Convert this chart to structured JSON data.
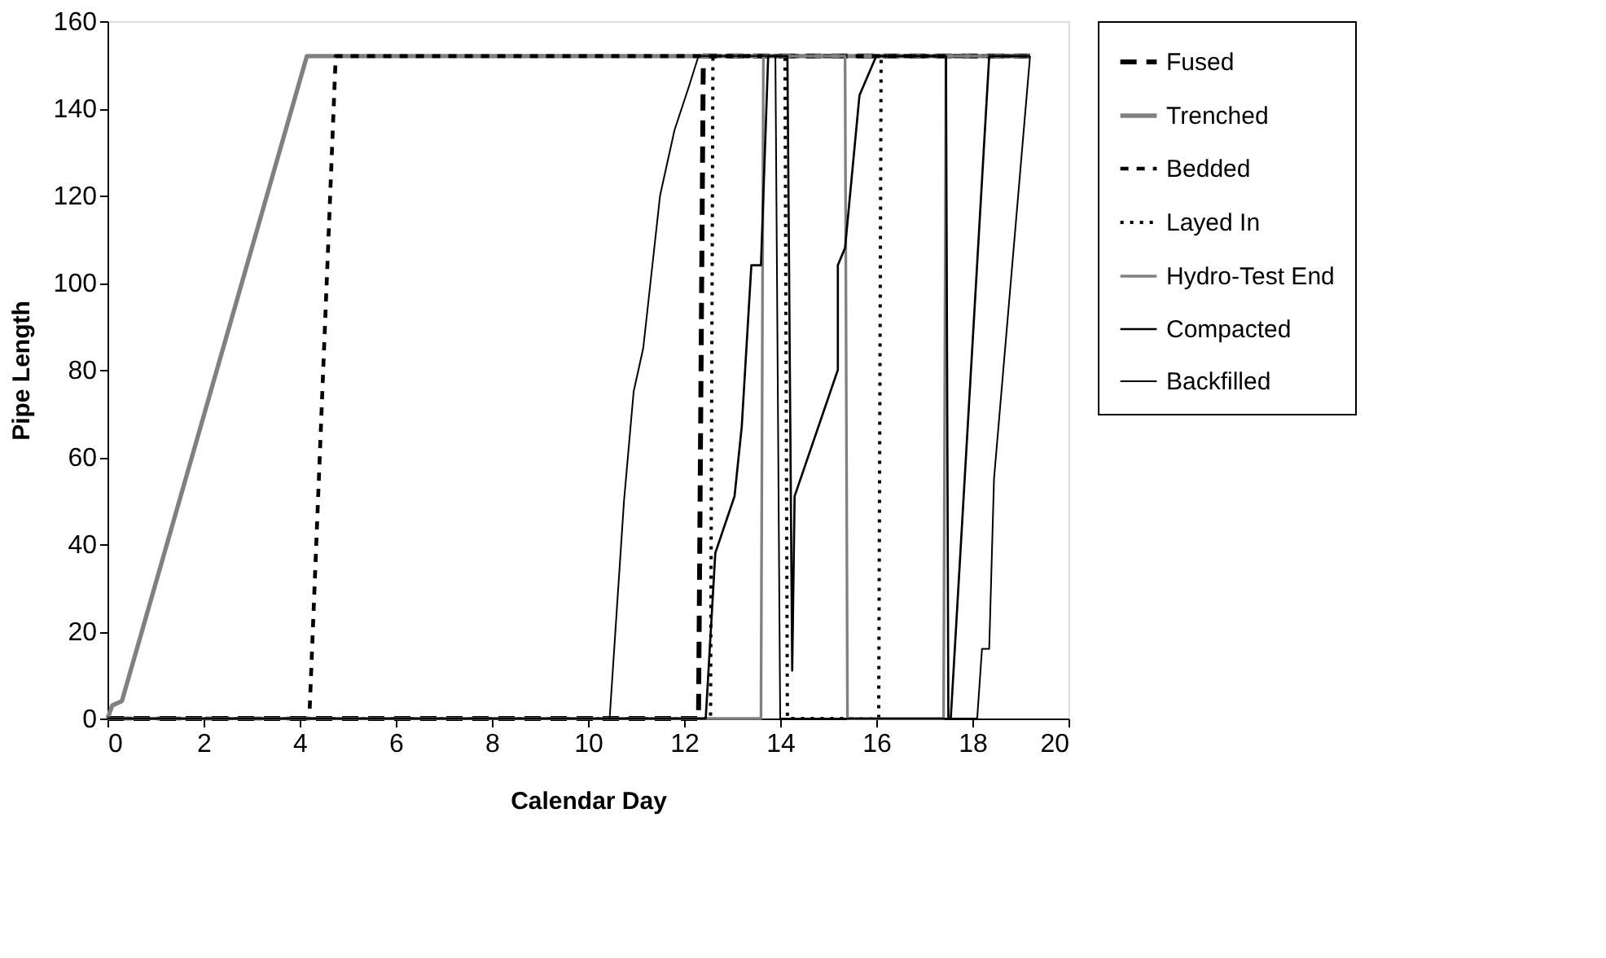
{
  "chart_data": {
    "type": "line",
    "xlabel": "Calendar Day",
    "ylabel": "Pipe Length",
    "xlim": [
      0,
      20
    ],
    "xticks": [
      0,
      2,
      4,
      6,
      8,
      10,
      12,
      14,
      16,
      18,
      20
    ],
    "ylim": [
      0,
      160
    ],
    "yticks": [
      0,
      20,
      40,
      60,
      80,
      100,
      120,
      140,
      160
    ],
    "grid": false,
    "legend": "right",
    "marker": "none",
    "series": [
      {
        "name": "Fused",
        "color": "#000000",
        "line_style": "dashed",
        "x": [
          0,
          12.3,
          12.4,
          19.2
        ],
        "values": [
          0,
          0,
          152,
          152
        ]
      },
      {
        "name": "Trenched",
        "color": "#808080",
        "line_style": "solid",
        "x": [
          0,
          0.1,
          0.3,
          4.15,
          19.2
        ],
        "values": [
          0,
          3,
          4,
          152,
          152
        ]
      },
      {
        "name": "Bedded",
        "color": "#000000",
        "line_style": "dashed",
        "x": [
          0,
          4.2,
          4.75,
          19.2
        ],
        "values": [
          0,
          0,
          152,
          152
        ]
      },
      {
        "name": "Layed In",
        "color": "#000000",
        "line_style": "dotted",
        "x": [
          0,
          12.55,
          12.6,
          14.1,
          14.15,
          16.05,
          16.1,
          19.2
        ],
        "values": [
          0,
          0,
          152,
          152,
          0,
          0,
          152,
          152
        ]
      },
      {
        "name": "Hydro-Test End",
        "color": "#808080",
        "line_style": "solid",
        "x": [
          0,
          13.6,
          13.65,
          15.35,
          15.4,
          17.4,
          17.45,
          19.2
        ],
        "values": [
          0,
          0,
          152,
          152,
          0,
          0,
          152,
          152
        ]
      },
      {
        "name": "Compacted",
        "color": "#000000",
        "line_style": "solid",
        "x": [
          0,
          12.45,
          12.65,
          13.05,
          13.2,
          13.4,
          13.6,
          13.75,
          14.15,
          14.25,
          14.3,
          15.2,
          15.2,
          15.35,
          15.65,
          16.0,
          17.45,
          17.5,
          17.55,
          18.35,
          19.2
        ],
        "values": [
          0,
          0,
          38,
          51,
          67,
          104,
          104,
          152,
          152,
          11,
          51,
          80,
          104,
          108,
          143,
          152,
          152,
          0,
          0,
          152,
          152
        ]
      },
      {
        "name": "Backfilled",
        "color": "#000000",
        "line_style": "solid",
        "x": [
          0,
          10.45,
          10.6,
          10.75,
          10.95,
          11.15,
          11.3,
          11.5,
          11.8,
          12.1,
          12.3,
          13.9,
          14.0,
          18.1,
          18.2,
          18.35,
          18.45,
          19.2
        ],
        "values": [
          0,
          0,
          25,
          50,
          75,
          85,
          100,
          120,
          135,
          145,
          152,
          152,
          0,
          0,
          16,
          16,
          55,
          152
        ]
      }
    ]
  }
}
